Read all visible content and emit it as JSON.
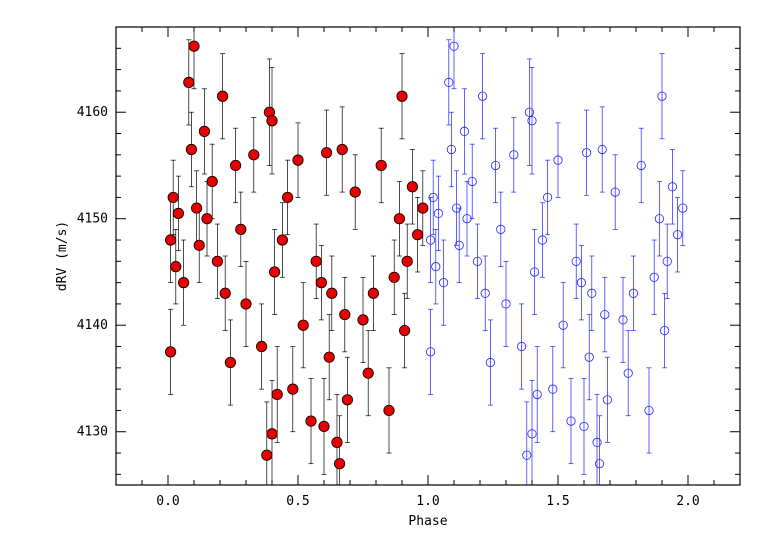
{
  "chart_data": {
    "type": "scatter",
    "title": "",
    "xlabel": "Phase",
    "ylabel": "dRV  (m/s)",
    "xlim": [
      -0.2,
      2.2
    ],
    "ylim": [
      4125,
      4168
    ],
    "x_ticks": [
      0.0,
      0.5,
      1.0,
      1.5,
      2.0
    ],
    "x_tick_labels": [
      "0.0",
      "0.5",
      "1.0",
      "1.5",
      "2.0"
    ],
    "y_ticks": [
      4130,
      4140,
      4150,
      4160
    ],
    "y_tick_labels": [
      "4130",
      "4140",
      "4150",
      "4160"
    ],
    "grid": false,
    "legend": "none",
    "colors": {
      "primary": "#e60000",
      "repeat": "#2020ff",
      "errorbar_primary": "#000000"
    },
    "series": [
      {
        "style": "filled-circle",
        "x": [
          0.01,
          0.01,
          0.02,
          0.03,
          0.04,
          0.06,
          0.08,
          0.09,
          0.1,
          0.11,
          0.12,
          0.14,
          0.15,
          0.17,
          0.19,
          0.21,
          0.22,
          0.24,
          0.26,
          0.28,
          0.3,
          0.33,
          0.36,
          0.38,
          0.39,
          0.4,
          0.4,
          0.41,
          0.42,
          0.44,
          0.46,
          0.48,
          0.5,
          0.52,
          0.55,
          0.57,
          0.59,
          0.6,
          0.61,
          0.62,
          0.63,
          0.65,
          0.66,
          0.67,
          0.68,
          0.69,
          0.72,
          0.75,
          0.77,
          0.79,
          0.82,
          0.85,
          0.87,
          0.89,
          0.9,
          0.91,
          0.92,
          0.94,
          0.96,
          0.98
        ],
        "y": [
          4148.0,
          4137.5,
          4152.0,
          4145.5,
          4150.5,
          4144.0,
          4162.8,
          4156.5,
          4166.2,
          4151.0,
          4147.5,
          4158.2,
          4150.0,
          4153.5,
          4146.0,
          4161.5,
          4143.0,
          4136.5,
          4155.0,
          4149.0,
          4142.0,
          4156.0,
          4138.0,
          4127.8,
          4160.0,
          4159.2,
          4129.8,
          4145.0,
          4133.5,
          4148.0,
          4152.0,
          4134.0,
          4155.5,
          4140.0,
          4131.0,
          4146.0,
          4144.0,
          4130.5,
          4156.2,
          4137.0,
          4143.0,
          4129.0,
          4127.0,
          4156.5,
          4141.0,
          4133.0,
          4152.5,
          4140.5,
          4135.5,
          4143.0,
          4155.0,
          4132.0,
          4144.5,
          4150.0,
          4161.5,
          4139.5,
          4146.0,
          4153.0,
          4148.5,
          4151.0
        ],
        "err": [
          4.0,
          4.0,
          3.5,
          3.5,
          3.5,
          4.0,
          4.0,
          3.5,
          4.0,
          3.5,
          3.5,
          4.0,
          3.5,
          3.5,
          3.5,
          4.0,
          3.5,
          4.0,
          3.5,
          3.5,
          4.0,
          3.5,
          4.0,
          5.0,
          5.0,
          5.0,
          5.0,
          4.0,
          4.5,
          3.5,
          3.5,
          4.0,
          3.5,
          4.0,
          4.0,
          3.5,
          3.5,
          4.5,
          4.0,
          4.0,
          3.5,
          4.5,
          4.5,
          4.0,
          3.5,
          4.0,
          3.5,
          4.0,
          4.0,
          3.5,
          3.5,
          4.0,
          3.5,
          3.5,
          4.0,
          3.5,
          3.5,
          3.5,
          3.5,
          3.5
        ]
      },
      {
        "style": "open-circle",
        "x": [
          1.01,
          1.01,
          1.02,
          1.03,
          1.04,
          1.06,
          1.08,
          1.09,
          1.1,
          1.11,
          1.12,
          1.14,
          1.15,
          1.17,
          1.19,
          1.21,
          1.22,
          1.24,
          1.26,
          1.28,
          1.3,
          1.33,
          1.36,
          1.38,
          1.39,
          1.4,
          1.4,
          1.41,
          1.42,
          1.44,
          1.46,
          1.48,
          1.5,
          1.52,
          1.55,
          1.57,
          1.59,
          1.6,
          1.61,
          1.62,
          1.63,
          1.65,
          1.66,
          1.67,
          1.68,
          1.69,
          1.72,
          1.75,
          1.77,
          1.79,
          1.82,
          1.85,
          1.87,
          1.89,
          1.9,
          1.91,
          1.92,
          1.94,
          1.96,
          1.98
        ],
        "y": [
          4148.0,
          4137.5,
          4152.0,
          4145.5,
          4150.5,
          4144.0,
          4162.8,
          4156.5,
          4166.2,
          4151.0,
          4147.5,
          4158.2,
          4150.0,
          4153.5,
          4146.0,
          4161.5,
          4143.0,
          4136.5,
          4155.0,
          4149.0,
          4142.0,
          4156.0,
          4138.0,
          4127.8,
          4160.0,
          4159.2,
          4129.8,
          4145.0,
          4133.5,
          4148.0,
          4152.0,
          4134.0,
          4155.5,
          4140.0,
          4131.0,
          4146.0,
          4144.0,
          4130.5,
          4156.2,
          4137.0,
          4143.0,
          4129.0,
          4127.0,
          4156.5,
          4141.0,
          4133.0,
          4152.5,
          4140.5,
          4135.5,
          4143.0,
          4155.0,
          4132.0,
          4144.5,
          4150.0,
          4161.5,
          4139.5,
          4146.0,
          4153.0,
          4148.5,
          4151.0
        ],
        "err": [
          4.0,
          4.0,
          3.5,
          3.5,
          3.5,
          4.0,
          4.0,
          3.5,
          4.0,
          3.5,
          3.5,
          4.0,
          3.5,
          3.5,
          3.5,
          4.0,
          3.5,
          4.0,
          3.5,
          3.5,
          4.0,
          3.5,
          4.0,
          5.0,
          5.0,
          5.0,
          5.0,
          4.0,
          4.5,
          3.5,
          3.5,
          4.0,
          3.5,
          4.0,
          4.0,
          3.5,
          3.5,
          4.5,
          4.0,
          4.0,
          3.5,
          4.5,
          4.5,
          4.0,
          3.5,
          4.0,
          3.5,
          4.0,
          4.0,
          3.5,
          3.5,
          4.0,
          3.5,
          3.5,
          4.0,
          3.5,
          3.5,
          3.5,
          3.5,
          3.5
        ]
      }
    ]
  }
}
